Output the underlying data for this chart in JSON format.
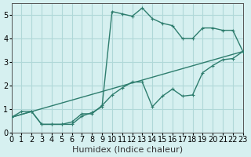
{
  "xlabel": "Humidex (Indice chaleur)",
  "ylabel": "",
  "bg_color": "#d6f0f0",
  "grid_color": "#b0d8d8",
  "line_color": "#2e7d6e",
  "xlim": [
    0,
    23
  ],
  "ylim": [
    0,
    5.5
  ],
  "xticks": [
    0,
    1,
    2,
    3,
    4,
    5,
    6,
    7,
    8,
    9,
    10,
    11,
    12,
    13,
    14,
    15,
    16,
    17,
    18,
    19,
    20,
    21,
    22,
    23
  ],
  "yticks": [
    0,
    1,
    2,
    3,
    4,
    5
  ],
  "series1_x": [
    0,
    1,
    2,
    3,
    4,
    5,
    6,
    7,
    8,
    9,
    10,
    11,
    12,
    13,
    14,
    15,
    16,
    17,
    18,
    19,
    20,
    21,
    22,
    23
  ],
  "series1_y": [
    0.65,
    0.9,
    0.9,
    0.35,
    0.35,
    0.35,
    0.35,
    0.7,
    0.85,
    1.1,
    5.15,
    5.05,
    4.95,
    5.3,
    4.85,
    4.65,
    4.55,
    4.0,
    4.0,
    4.45,
    4.45,
    4.35,
    4.35,
    3.45
  ],
  "series2_x": [
    0,
    2,
    3,
    4,
    5,
    6,
    7,
    8,
    9,
    10,
    11,
    12,
    13,
    14,
    15,
    16,
    17,
    18,
    19,
    20,
    21,
    22,
    23
  ],
  "series2_y": [
    0.65,
    0.9,
    0.35,
    0.35,
    0.35,
    0.45,
    0.8,
    0.8,
    1.15,
    1.6,
    1.9,
    2.15,
    2.15,
    1.1,
    1.55,
    1.85,
    1.55,
    1.6,
    2.55,
    2.85,
    3.1,
    3.15,
    3.45
  ],
  "series3_x": [
    0,
    23
  ],
  "series3_y": [
    0.65,
    3.45
  ],
  "font_size_xlabel": 8,
  "font_size_ticks": 7
}
